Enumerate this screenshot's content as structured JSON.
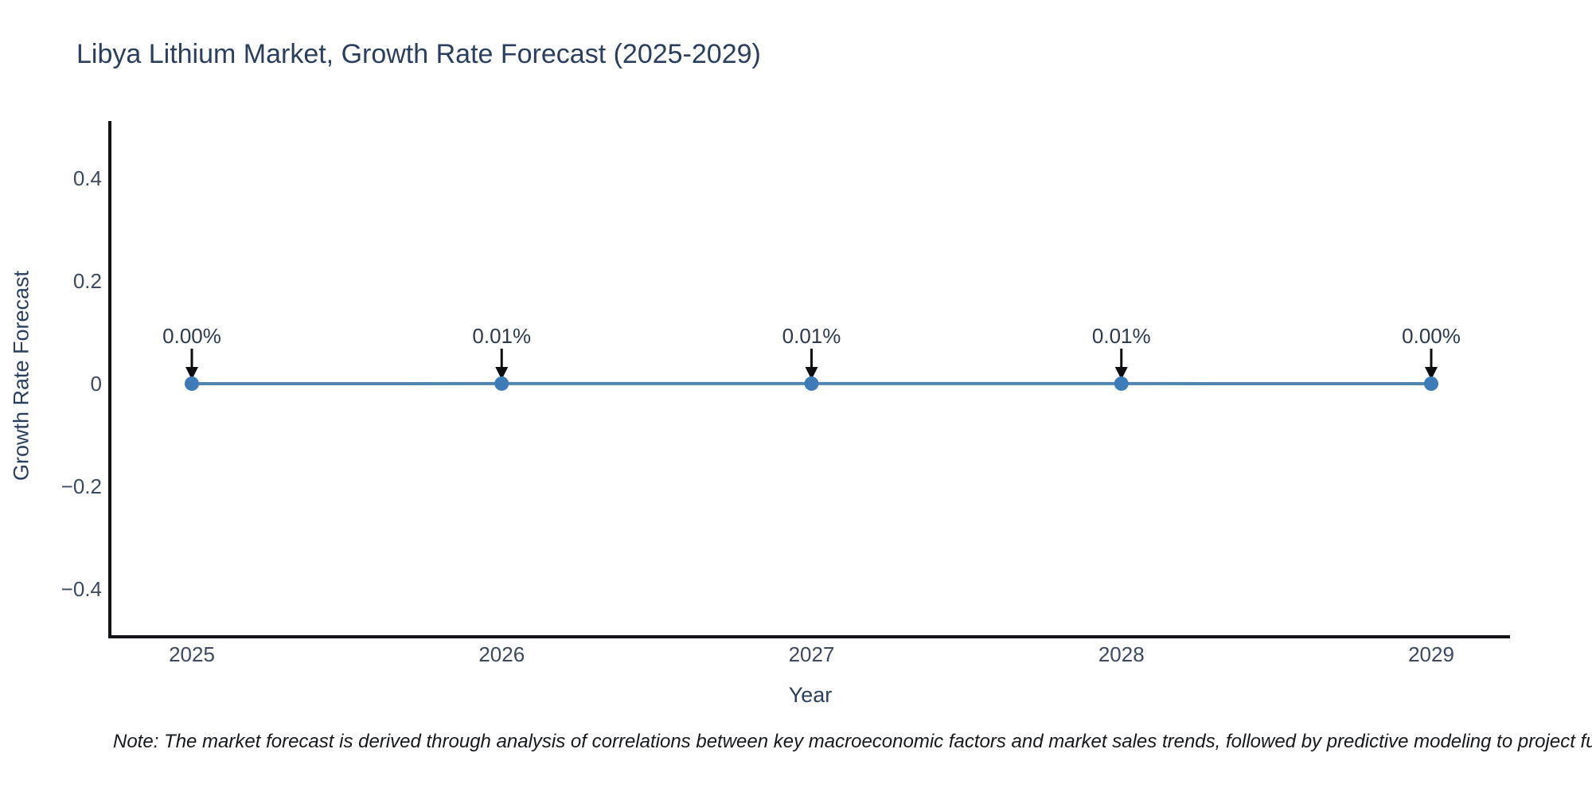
{
  "chart_data": {
    "type": "line",
    "title": "Libya Lithium Market, Growth Rate Forecast (2025-2029)",
    "xlabel": "Year",
    "ylabel": "Growth Rate Forecast",
    "x": [
      2025,
      2026,
      2027,
      2028,
      2029
    ],
    "x_tick_labels": [
      "2025",
      "2026",
      "2027",
      "2028",
      "2029"
    ],
    "series": [
      {
        "name": "Growth Rate Forecast",
        "values_percent": [
          0.0,
          0.01,
          0.01,
          0.01,
          0.0
        ],
        "point_labels": [
          "0.00%",
          "0.01%",
          "0.01%",
          "0.01%",
          "0.00%"
        ]
      }
    ],
    "yticks": [
      {
        "value": 0.4,
        "label": "0.4"
      },
      {
        "value": 0.2,
        "label": "0.2"
      },
      {
        "value": 0,
        "label": "0"
      },
      {
        "value": -0.2,
        "label": "−0.2"
      },
      {
        "value": -0.4,
        "label": "−0.4"
      }
    ],
    "ylim": [
      -0.5,
      0.5
    ],
    "grid": false,
    "legend_visible": false,
    "annotation_arrows": "down",
    "colors": {
      "line": "#5085b0",
      "marker": "#3d7cb8",
      "axis": "#101317",
      "arrow": "#0b0d10",
      "title_text": "#2a3f5f",
      "tick_text": "#3b4a61",
      "annotation_text": "#2c3a50",
      "note_text": "#15181c",
      "background": "#ffffff"
    },
    "note": "Note: The market forecast is derived through analysis of correlations between key macroeconomic factors and market sales trends, followed by predictive modeling to project future sales"
  }
}
